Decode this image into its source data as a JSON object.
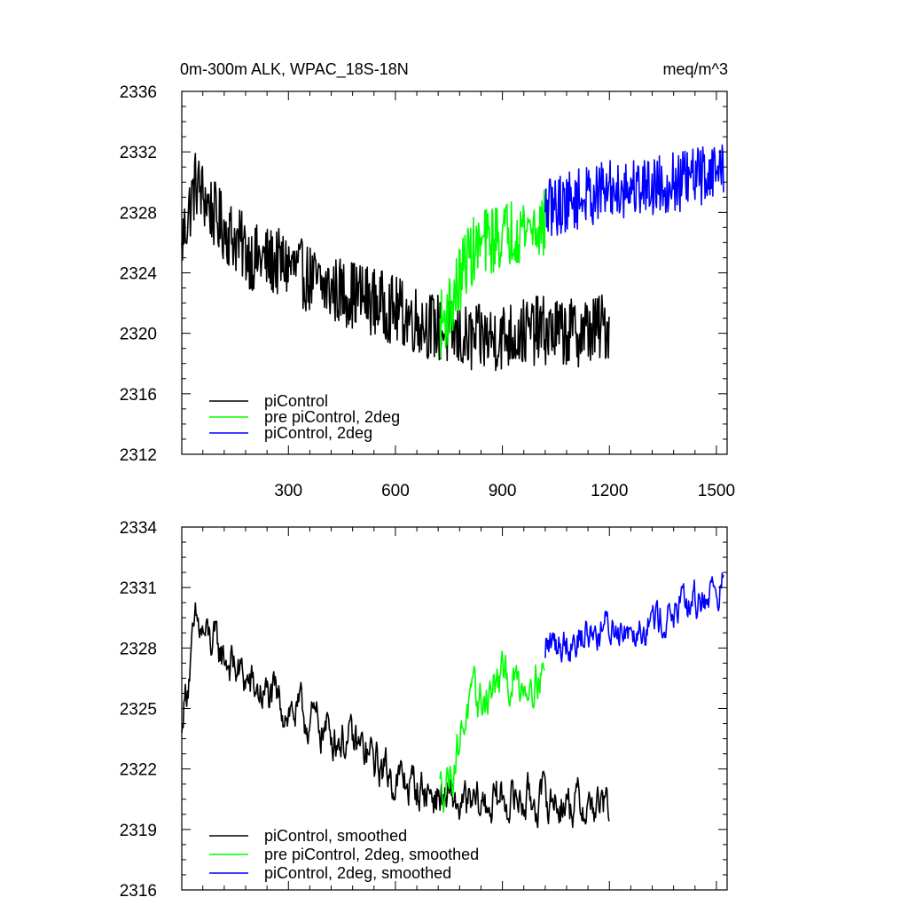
{
  "chart_data": [
    {
      "type": "line",
      "title": "0m-300m ALK, WPAC_18S-18N",
      "units": "meq/m^3",
      "xlim": [
        1,
        1530
      ],
      "ylim": [
        2312,
        2336
      ],
      "xticks": [
        300,
        600,
        900,
        1200,
        1500
      ],
      "yticks": [
        2312,
        2316,
        2320,
        2324,
        2328,
        2332,
        2336
      ],
      "legend_position": "bottom-left",
      "grid": false,
      "series": [
        {
          "name": "piControl",
          "color": "#000000",
          "x_start": 1,
          "x_end": 1200,
          "y_start": 2326.0,
          "y_end": 2321.0,
          "control": [
            [
              1,
              2326
            ],
            [
              40,
              2330
            ],
            [
              100,
              2327.5
            ],
            [
              200,
              2325
            ],
            [
              300,
              2324.5
            ],
            [
              400,
              2323
            ],
            [
              500,
              2322.5
            ],
            [
              600,
              2321.5
            ],
            [
              700,
              2320.5
            ],
            [
              800,
              2319.5
            ],
            [
              900,
              2319.8
            ],
            [
              1000,
              2320.2
            ],
            [
              1100,
              2320
            ],
            [
              1200,
              2320.5
            ]
          ],
          "noise": 2.3
        },
        {
          "name": "pre piControl, 2deg",
          "color": "#00ff00",
          "x_start": 725,
          "x_end": 1020,
          "y_start": 2321.0,
          "y_end": 2327.0,
          "control": [
            [
              725,
              2320.5
            ],
            [
              760,
              2322
            ],
            [
              800,
              2325
            ],
            [
              850,
              2326
            ],
            [
              900,
              2326.5
            ],
            [
              950,
              2327
            ],
            [
              1020,
              2327.2
            ]
          ],
          "noise": 2.3
        },
        {
          "name": "piControl, 2deg",
          "color": "#0000ff",
          "x_start": 1020,
          "x_end": 1520,
          "y_start": 2328.0,
          "y_end": 2330.5,
          "control": [
            [
              1020,
              2328.2
            ],
            [
              1100,
              2328.8
            ],
            [
              1200,
              2329.5
            ],
            [
              1300,
              2329.8
            ],
            [
              1400,
              2330
            ],
            [
              1520,
              2331
            ]
          ],
          "noise": 2.0
        }
      ]
    },
    {
      "type": "line",
      "title": "",
      "units": "",
      "xlim": [
        1,
        1530
      ],
      "ylim": [
        2316,
        2334
      ],
      "yticks": [
        2316,
        2319,
        2322,
        2325,
        2328,
        2331,
        2334
      ],
      "legend_position": "bottom-left",
      "grid": false,
      "series": [
        {
          "name": "piControl, smoothed",
          "color": "#000000",
          "x_start": 1,
          "x_end": 1200,
          "y_start": 2323.8,
          "y_end": 2320.0,
          "control": [
            [
              1,
              2324.5
            ],
            [
              40,
              2329
            ],
            [
              100,
              2328
            ],
            [
              200,
              2326
            ],
            [
              300,
              2325
            ],
            [
              400,
              2324
            ],
            [
              500,
              2323
            ],
            [
              600,
              2321.5
            ],
            [
              700,
              2320.8
            ],
            [
              800,
              2320
            ],
            [
              900,
              2320.5
            ],
            [
              1000,
              2320.5
            ],
            [
              1100,
              2320.3
            ],
            [
              1200,
              2320
            ]
          ],
          "noise": 1.5
        },
        {
          "name": "pre piControl, 2deg, smoothed",
          "color": "#00ff00",
          "x_start": 725,
          "x_end": 1020,
          "y_start": 2321.5,
          "y_end": 2326.0,
          "control": [
            [
              725,
              2321
            ],
            [
              760,
              2322
            ],
            [
              800,
              2325
            ],
            [
              850,
              2325.5
            ],
            [
              900,
              2326.5
            ],
            [
              950,
              2326.2
            ],
            [
              1020,
              2327
            ]
          ],
          "noise": 1.5
        },
        {
          "name": "piControl, 2deg, smoothed",
          "color": "#0000ff",
          "x_start": 1020,
          "x_end": 1520,
          "y_start": 2327.5,
          "y_end": 2330.8,
          "control": [
            [
              1020,
              2328
            ],
            [
              1100,
              2328.5
            ],
            [
              1200,
              2329
            ],
            [
              1300,
              2329.3
            ],
            [
              1400,
              2329.8
            ],
            [
              1520,
              2331.2
            ]
          ],
          "noise": 1.3
        }
      ]
    }
  ]
}
